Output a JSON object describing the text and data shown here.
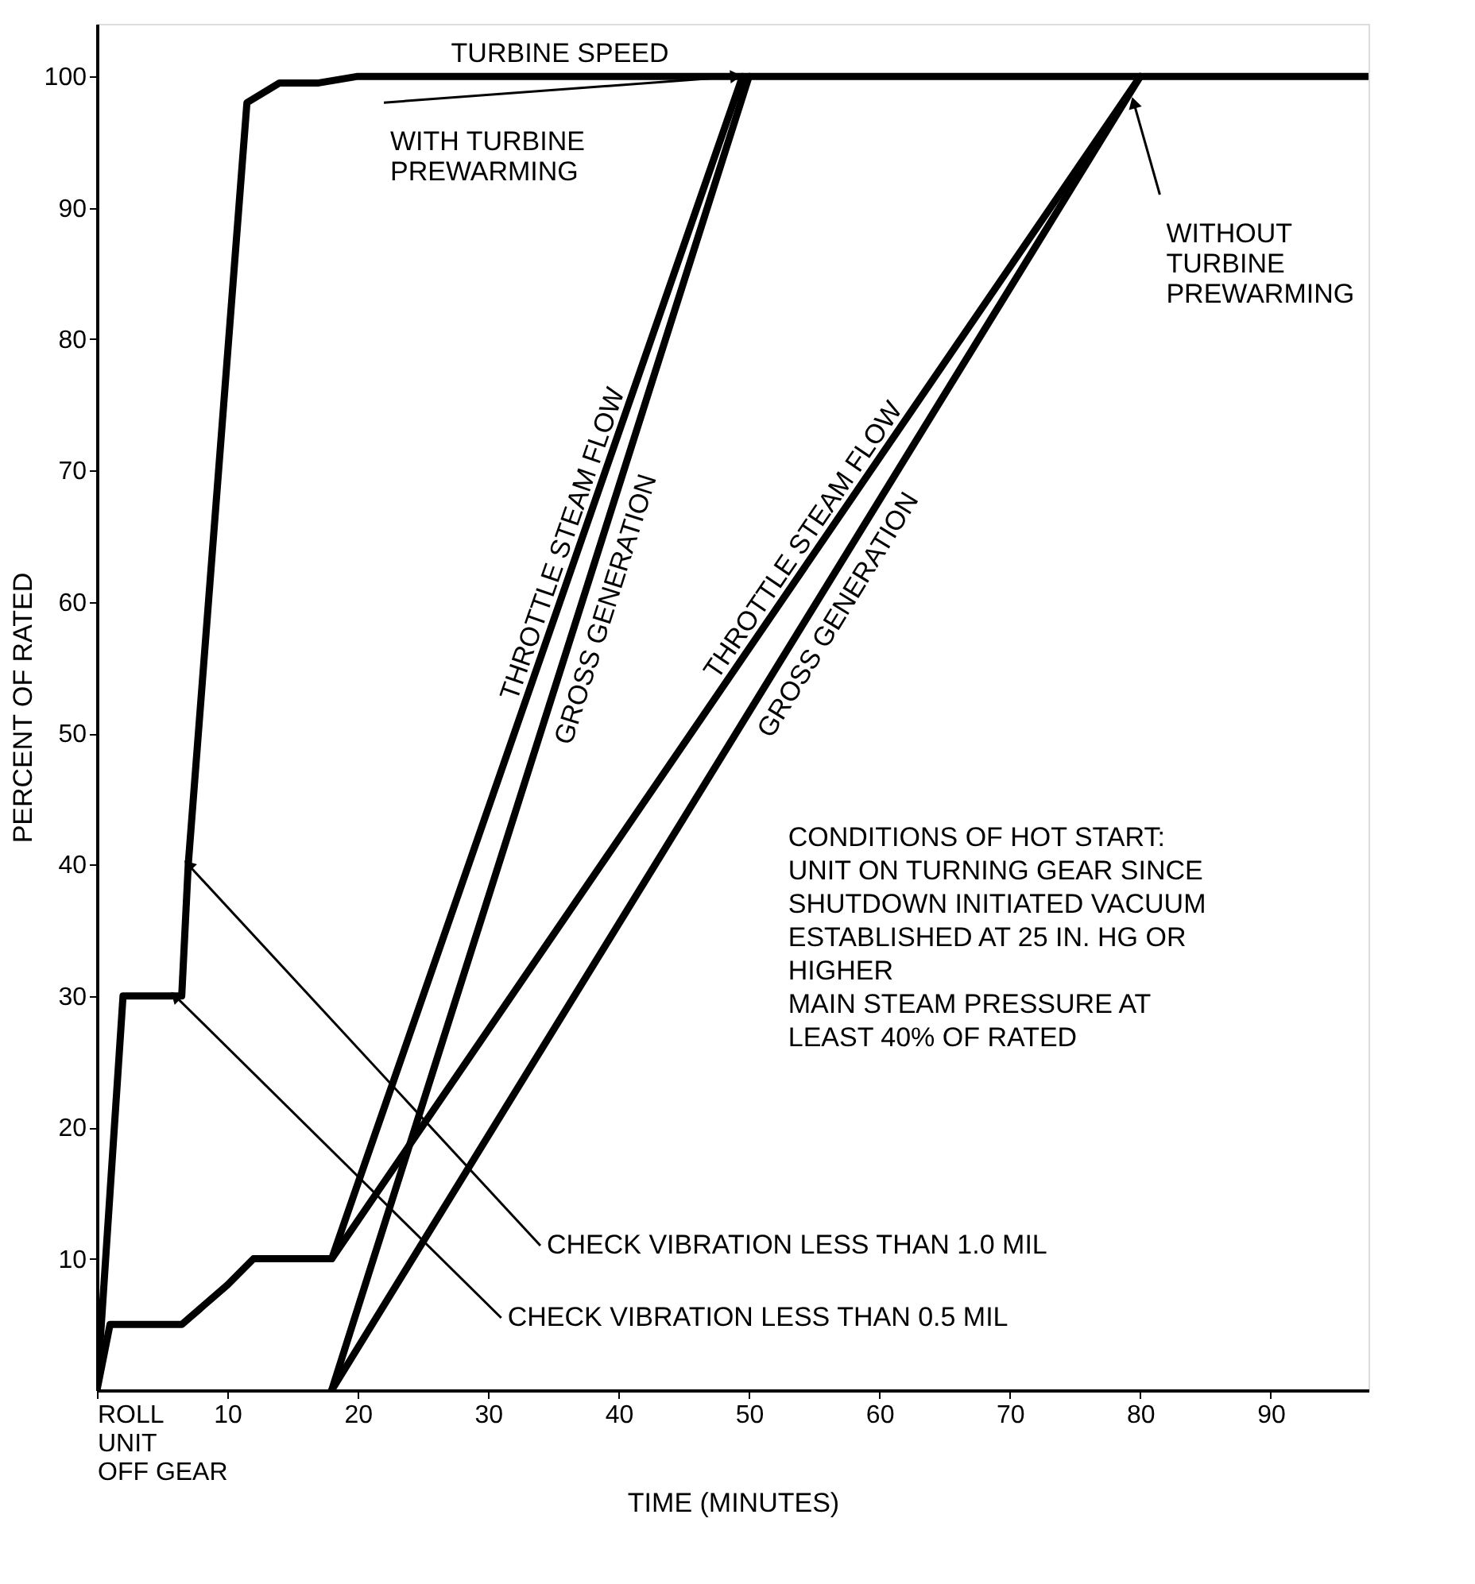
{
  "chart_data": {
    "type": "line",
    "xlabel": "TIME (MINUTES)",
    "ylabel": "PERCENT OF RATED",
    "xlim": [
      0,
      97.5
    ],
    "ylim": [
      0,
      104
    ],
    "xticks": [
      {
        "value": 0,
        "label": "ROLL\nUNIT\nOFF GEAR"
      },
      10,
      20,
      30,
      40,
      50,
      60,
      70,
      80,
      90
    ],
    "yticks": [
      10,
      20,
      30,
      40,
      50,
      60,
      70,
      80,
      90,
      100
    ],
    "grid": false,
    "marker": "none",
    "line_style": "solid",
    "series": [
      {
        "name": "TURBINE SPEED",
        "color": "#000000",
        "x": [
          0,
          2,
          6.5,
          7,
          11.5,
          14,
          17,
          20,
          97.5
        ],
        "values": [
          0,
          30,
          30,
          40,
          98,
          99.5,
          99.5,
          100,
          100
        ]
      },
      {
        "name": "THROTTLE STEAM FLOW",
        "color": "#000000",
        "x": [
          0,
          1,
          6.5,
          10,
          12,
          17,
          18,
          49.5
        ],
        "values": [
          0,
          5,
          5,
          8,
          10,
          10,
          10,
          100
        ]
      },
      {
        "name": "GROSS GENERATION",
        "color": "#000000",
        "x": [
          18,
          50
        ],
        "values": [
          0,
          100
        ]
      },
      {
        "name": "THROTTLE STEAM FLOW",
        "color": "#000000",
        "x": [
          18,
          80
        ],
        "values": [
          10,
          100
        ]
      },
      {
        "name": "GROSS GENERATION",
        "color": "#000000",
        "x": [
          18,
          80
        ],
        "values": [
          0,
          100
        ]
      }
    ],
    "annotations": [
      {
        "text": "WITH TURBINE\nPREWARMING",
        "x": 49,
        "y": 100
      },
      {
        "text": "WITHOUT\nTURBINE\nPREWARMING",
        "x": 79.5,
        "y": 98
      },
      {
        "text": "CHECK VIBRATION LESS THAN 1.0 MIL",
        "x": 7,
        "y": 40
      },
      {
        "text": "CHECK VIBRATION LESS THAN 0.5 MIL",
        "x": 6,
        "y": 30
      },
      "CONDITIONS OF HOT START:\n\nUNIT ON TURNING GEAR SINCE\nSHUTDOWN INITIATED VACUUM\nESTABLISHED AT 25 IN. HG OR\nHIGHER\nMAIN STEAM PRESSURE AT\nLEAST 40% OF RATED"
    ]
  }
}
